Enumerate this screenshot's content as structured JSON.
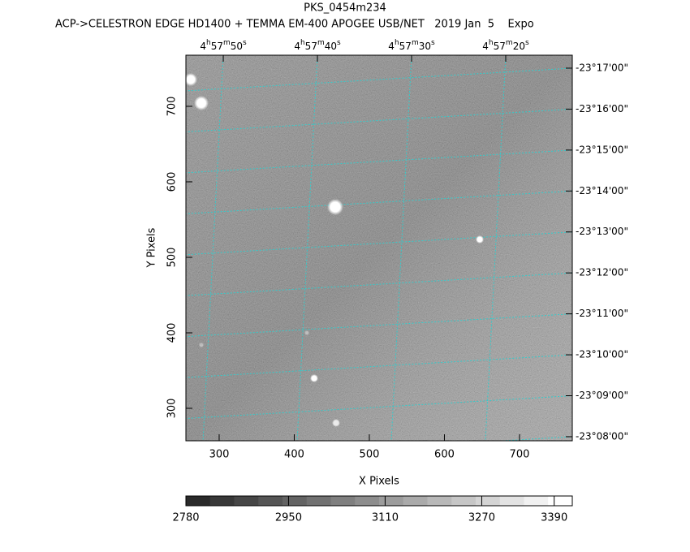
{
  "chart_data": {
    "type": "image",
    "title": "PKS_0454m234",
    "subtitle": "ACP->CELESTRON EDGE HD1400 + TEMMA EM-400 APOGEE USB/NET   2019 Jan  5    Expo",
    "xlabel": "X Pixels",
    "ylabel": "Y Pixels",
    "xlim": [
      255.7,
      770.3
    ],
    "xticks": [
      300,
      400,
      500,
      600,
      700
    ],
    "ylim": [
      257,
      767.7
    ],
    "yticks": [
      300,
      400,
      500,
      600,
      700
    ],
    "x2lim": [
      17873.97,
      17832.93
    ],
    "x2ticks": [
      {
        "value": 17870,
        "label": "4h57m50s"
      },
      {
        "value": 17860,
        "label": "4h57m40s"
      },
      {
        "value": 17850,
        "label": "4h57m30s"
      },
      {
        "value": 17840,
        "label": "4h57m20s"
      }
    ],
    "y2lim": [
      -83274,
      -83839
    ],
    "y2ticks": [
      {
        "value": -83820,
        "label": "-23°17'00\""
      },
      {
        "value": -83760,
        "label": "-23°16'00\""
      },
      {
        "value": -83700,
        "label": "-23°15'00\""
      },
      {
        "value": -83640,
        "label": "-23°14'00\""
      },
      {
        "value": -83580,
        "label": "-23°13'00\""
      },
      {
        "value": -83520,
        "label": "-23°12'00\""
      },
      {
        "value": -83460,
        "label": "-23°11'00\""
      },
      {
        "value": -83400,
        "label": "-23°10'00\""
      },
      {
        "value": -83340,
        "label": "-23°09'00\""
      },
      {
        "value": -83280,
        "label": "-23°08'00\""
      }
    ],
    "colorbar": {
      "clim": [
        2780,
        3420
      ],
      "ticks": [
        2780,
        2950,
        3110,
        3270,
        3390
      ]
    },
    "grid": true,
    "grid_color": "#33cccc"
  }
}
